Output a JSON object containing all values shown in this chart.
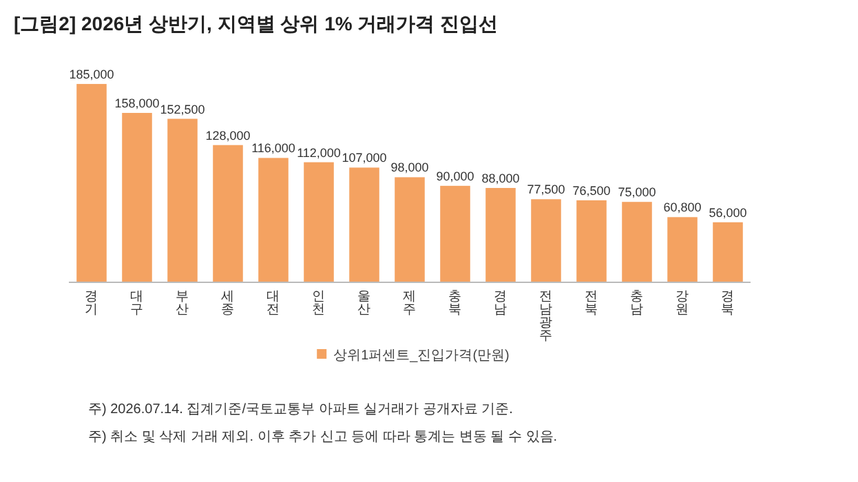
{
  "chart_data": {
    "type": "bar",
    "title": "[그림2] 2026년 상반기, 지역별 상위 1% 거래가격 진입선",
    "categories": [
      "경기",
      "대구",
      "부산",
      "세종",
      "대전",
      "인천",
      "울산",
      "제주",
      "충북",
      "경남",
      "전남광주",
      "전북",
      "충남",
      "강원",
      "경북"
    ],
    "series": [
      {
        "name": "상위1퍼센트_진입가격(만원)",
        "color": "#f4a261",
        "values": [
          185000,
          158000,
          152500,
          128000,
          116000,
          112000,
          107000,
          98000,
          90000,
          88000,
          77500,
          76500,
          75000,
          60800,
          56000
        ],
        "value_labels": [
          "185,000",
          "158,000",
          "152,500",
          "128,000",
          "116,000",
          "112,000",
          "107,000",
          "98,000",
          "90,000",
          "88,000",
          "77,500",
          "76,500",
          "75,000",
          "60,800",
          "56,000"
        ]
      }
    ],
    "legend": "bottom",
    "grid": false,
    "annotations": [
      "주) 2026.07.14. 집계기준/국토교통부 아파트 실거래가 공개자료 기준.",
      "주) 취소 및 삭제 거래 제외. 이후 추가 신고 등에 따라 통계는 변동 될 수 있음."
    ]
  }
}
